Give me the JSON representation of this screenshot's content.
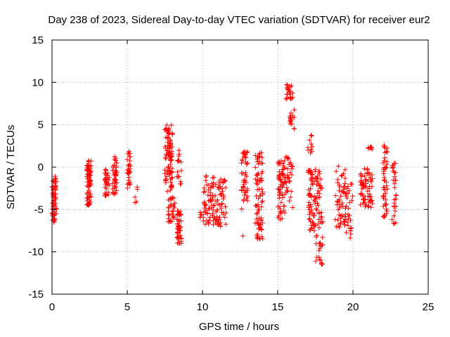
{
  "chart_data": {
    "type": "scatter",
    "title": "Day 238 of 2023, Sidereal Day-to-day VTEC variation (SDTVAR) for receiver eur2",
    "xlabel": "GPS time / hours",
    "ylabel": "SDTVAR / TECUs",
    "xlim": [
      0,
      25
    ],
    "ylim": [
      -15,
      15
    ],
    "xticks": [
      "0",
      "5",
      "10",
      "15",
      "20",
      "25"
    ],
    "yticks": [
      "-15",
      "-10",
      "-5",
      "0",
      "5",
      "10",
      "15"
    ],
    "grid": true,
    "marker": "+",
    "color": "#ff0000",
    "clusters": [
      {
        "x": [
          0.0,
          0.3
        ],
        "y": [
          -6.5,
          -0.8
        ],
        "n": 60
      },
      {
        "x": [
          2.3,
          2.6
        ],
        "y": [
          -4.8,
          0.8
        ],
        "n": 70
      },
      {
        "x": [
          3.5,
          3.8
        ],
        "y": [
          -3.5,
          -0.2
        ],
        "n": 30
      },
      {
        "x": [
          4.0,
          4.3
        ],
        "y": [
          -3.2,
          1.5
        ],
        "n": 40
      },
      {
        "x": [
          5.0,
          5.2
        ],
        "y": [
          -2.5,
          2.0
        ],
        "n": 30
      },
      {
        "x": [
          5.5,
          5.7
        ],
        "y": [
          -4.2,
          -2.3
        ],
        "n": 5
      },
      {
        "x": [
          7.5,
          8.0
        ],
        "y": [
          -3.0,
          5.0
        ],
        "n": 90
      },
      {
        "x": [
          7.7,
          8.2
        ],
        "y": [
          -6.5,
          -3.5
        ],
        "n": 30
      },
      {
        "x": [
          8.3,
          8.6
        ],
        "y": [
          -9.0,
          -5.0
        ],
        "n": 45
      },
      {
        "x": [
          8.3,
          8.6
        ],
        "y": [
          -2.0,
          2.0
        ],
        "n": 15
      },
      {
        "x": [
          9.8,
          10.0
        ],
        "y": [
          -6.0,
          -5.0
        ],
        "n": 4
      },
      {
        "x": [
          10.0,
          11.0
        ],
        "y": [
          -6.8,
          -1.0
        ],
        "n": 70
      },
      {
        "x": [
          11.0,
          11.6
        ],
        "y": [
          -7.0,
          -1.2
        ],
        "n": 45
      },
      {
        "x": [
          12.6,
          13.0
        ],
        "y": [
          -5.5,
          2.3
        ],
        "n": 45
      },
      {
        "x": [
          12.6,
          12.8
        ],
        "y": [
          -8.3,
          -8.1
        ],
        "n": 1
      },
      {
        "x": [
          13.5,
          14.0
        ],
        "y": [
          -8.5,
          1.8
        ],
        "n": 80
      },
      {
        "x": [
          15.0,
          15.5
        ],
        "y": [
          -6.5,
          1.0
        ],
        "n": 60
      },
      {
        "x": [
          15.5,
          16.0
        ],
        "y": [
          8.0,
          10.0
        ],
        "n": 20
      },
      {
        "x": [
          15.8,
          16.1
        ],
        "y": [
          4.5,
          9.0
        ],
        "n": 20
      },
      {
        "x": [
          15.5,
          16.0
        ],
        "y": [
          -5.0,
          1.5
        ],
        "n": 30
      },
      {
        "x": [
          17.0,
          17.3
        ],
        "y": [
          1.5,
          3.8
        ],
        "n": 10
      },
      {
        "x": [
          17.0,
          17.5
        ],
        "y": [
          -7.5,
          -0.2
        ],
        "n": 60
      },
      {
        "x": [
          17.5,
          18.0
        ],
        "y": [
          -11.5,
          -0.2
        ],
        "n": 60
      },
      {
        "x": [
          18.8,
          19.5
        ],
        "y": [
          -7.5,
          0.2
        ],
        "n": 50
      },
      {
        "x": [
          19.5,
          20.0
        ],
        "y": [
          -8.8,
          -1.5
        ],
        "n": 30
      },
      {
        "x": [
          20.5,
          21.0
        ],
        "y": [
          -4.8,
          0.0
        ],
        "n": 40
      },
      {
        "x": [
          21.0,
          21.3
        ],
        "y": [
          2.0,
          2.4
        ],
        "n": 8
      },
      {
        "x": [
          21.0,
          21.3
        ],
        "y": [
          -4.8,
          -0.5
        ],
        "n": 25
      },
      {
        "x": [
          22.0,
          22.3
        ],
        "y": [
          -6.0,
          2.8
        ],
        "n": 45
      },
      {
        "x": [
          22.6,
          22.9
        ],
        "y": [
          -6.8,
          1.5
        ],
        "n": 30
      }
    ]
  }
}
